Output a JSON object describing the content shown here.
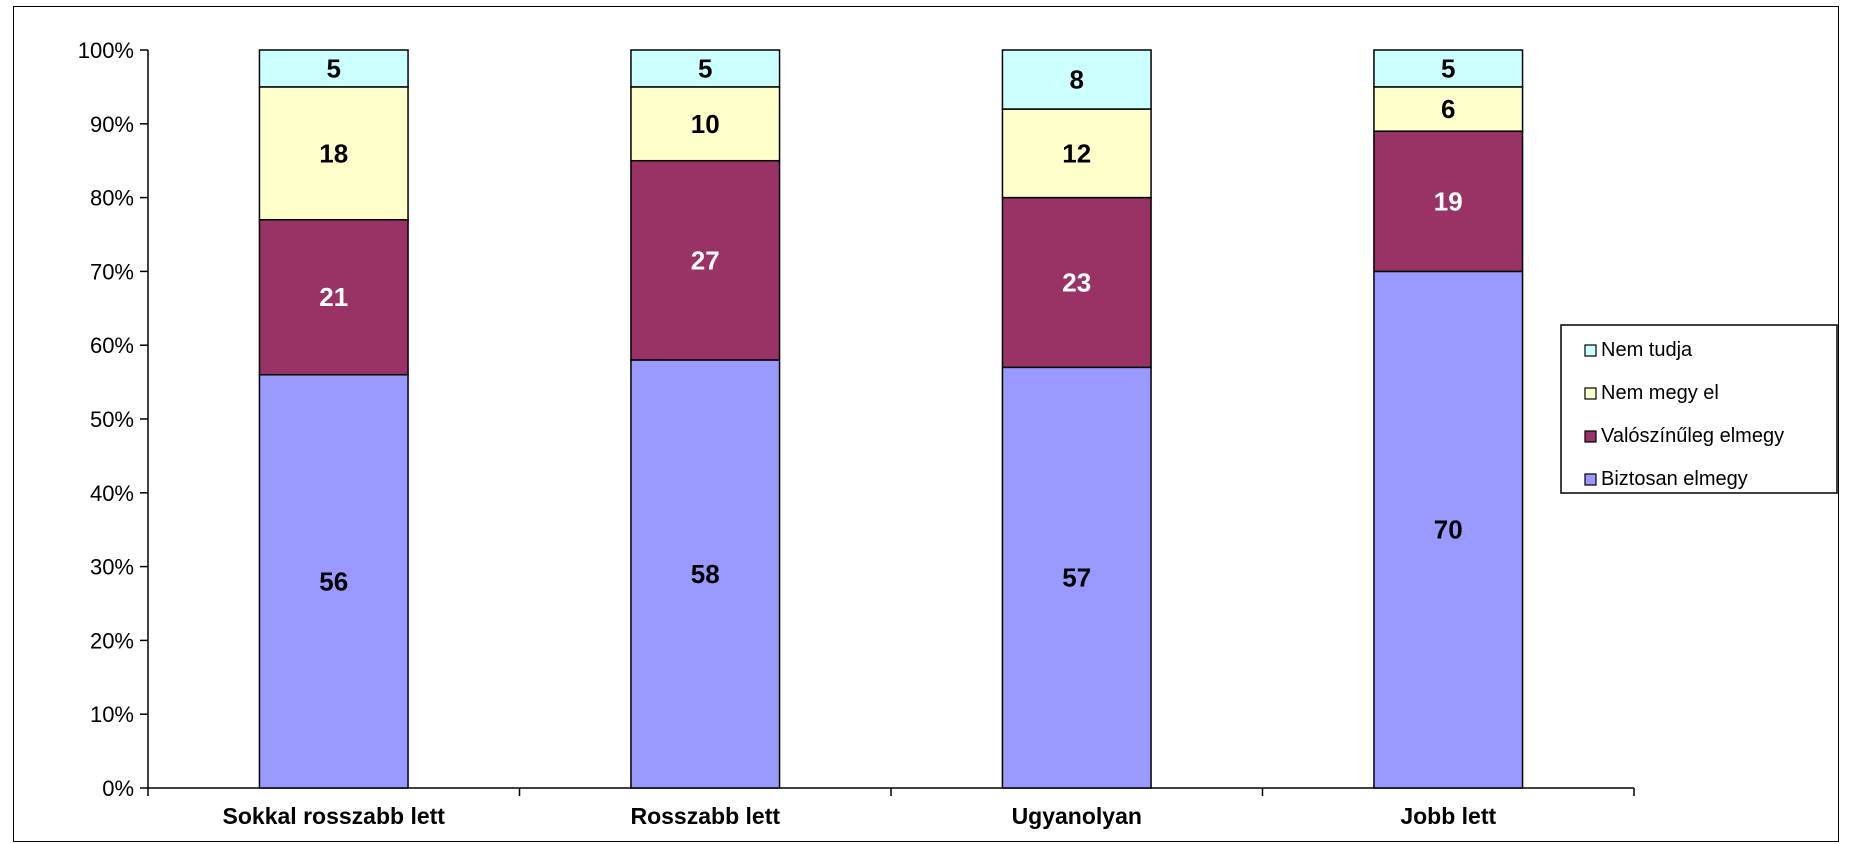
{
  "chart_data": {
    "type": "bar",
    "stacked": true,
    "percent_stacked": true,
    "categories": [
      "Sokkal rosszabb lett",
      "Rosszabb lett",
      "Ugyanolyan",
      "Jobb lett"
    ],
    "series": [
      {
        "name": "Biztosan elmegy",
        "values": [
          56,
          58,
          57,
          70
        ],
        "color": "#9999FF",
        "label_color": "#000000"
      },
      {
        "name": "Valószínűleg elmegy",
        "values": [
          21,
          27,
          23,
          19
        ],
        "color": "#993366",
        "label_color": "#FFFFFF"
      },
      {
        "name": "Nem megy el",
        "values": [
          18,
          10,
          12,
          6
        ],
        "color": "#FFFFCC",
        "label_color": "#000000"
      },
      {
        "name": "Nem tudja",
        "values": [
          5,
          5,
          8,
          5
        ],
        "color": "#CCFFFF",
        "label_color": "#000000"
      }
    ],
    "yticks": [
      "0%",
      "10%",
      "20%",
      "30%",
      "40%",
      "50%",
      "60%",
      "70%",
      "80%",
      "90%",
      "100%"
    ],
    "ylim": [
      0,
      100
    ],
    "grid": false,
    "legend": {
      "position": "right",
      "order": [
        "Nem tudja",
        "Nem megy el",
        "Valószínűleg elmegy",
        "Biztosan elmegy"
      ]
    }
  }
}
